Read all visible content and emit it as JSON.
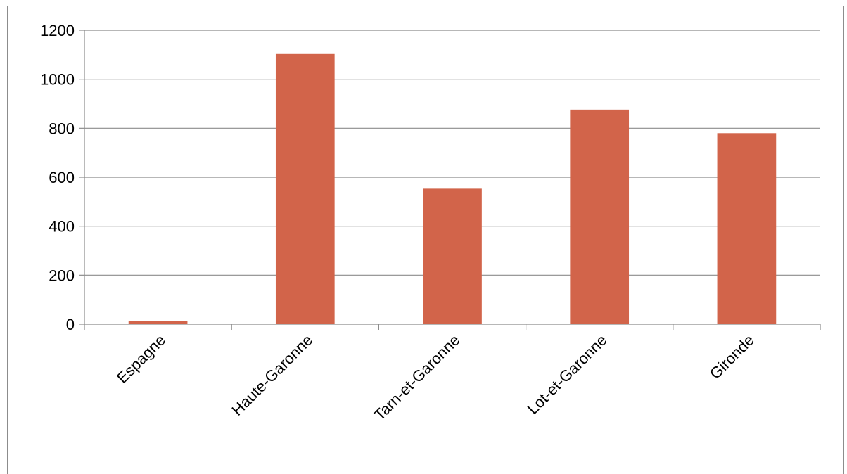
{
  "chart_data": {
    "type": "bar",
    "title": "",
    "xlabel": "",
    "ylabel": "",
    "categories": [
      "Espagne",
      "Haute-Garonne",
      "Tarn-et-Garonne",
      "Lot-et-Garonne",
      "Gironde"
    ],
    "values": [
      12,
      1103,
      553,
      876,
      780
    ],
    "ylim": [
      0,
      1200
    ],
    "yticks": [
      0,
      200,
      400,
      600,
      800,
      1000,
      1200
    ],
    "grid": true,
    "legend": "none",
    "colors": {
      "bar": "#D2644A",
      "grid": "#8c8c8c",
      "axis": "#8c8c8c"
    }
  }
}
